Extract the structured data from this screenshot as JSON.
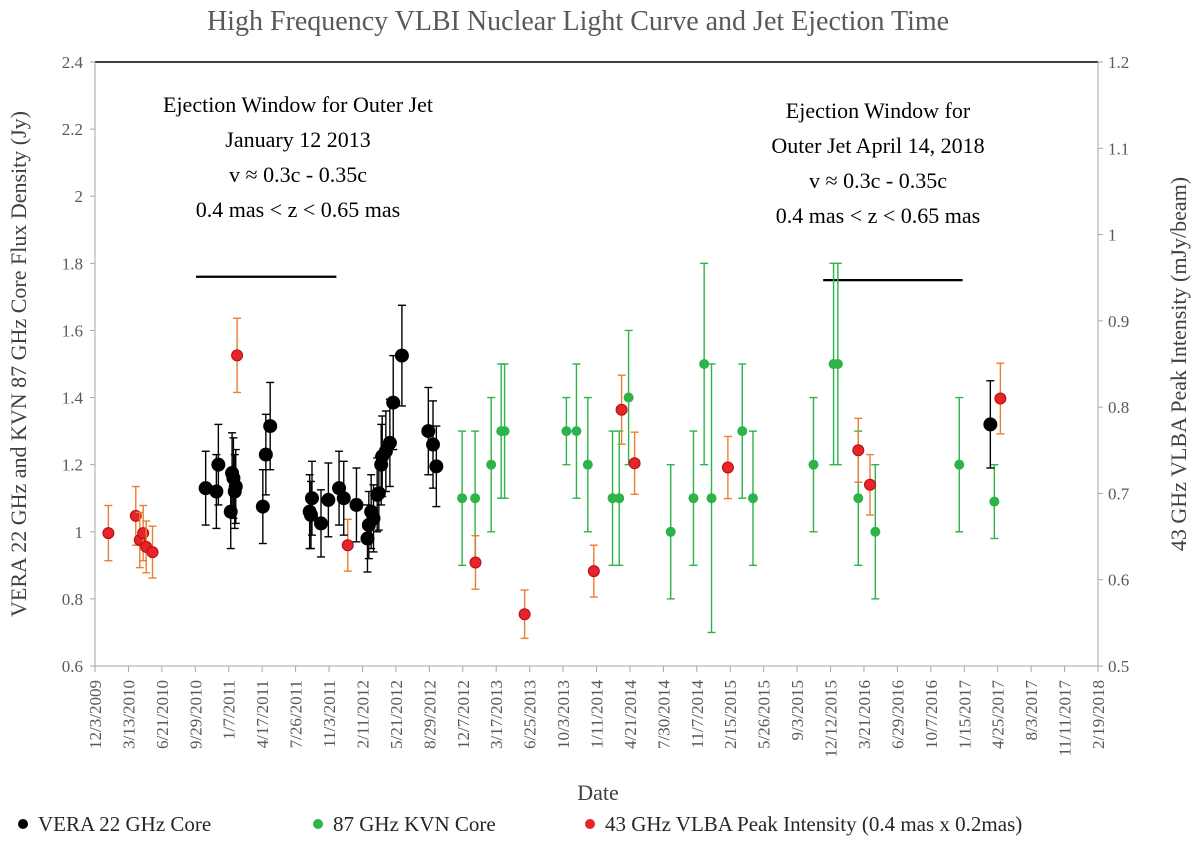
{
  "chart_data": {
    "type": "scatter",
    "title": "High Frequency VLBI Nuclear Light Curve and Jet Ejection Time",
    "xlabel": "Date",
    "ylabel_left": "VERA 22 GHz and KVN 87 GHz Core Flux Density (Jy)",
    "ylabel_right": "43 GHz VLBA Peak Intensity (mJy/beam)",
    "ylim_left": [
      0.6,
      2.4
    ],
    "ylim_right": [
      0.5,
      1.2
    ],
    "yticks_left": [
      "0.6",
      "0.8",
      "1",
      "1.2",
      "1.4",
      "1.6",
      "1.8",
      "2",
      "2.2",
      "2.4"
    ],
    "yticks_right": [
      "0.5",
      "0.6",
      "0.7",
      "0.8",
      "0.9",
      "1",
      "1.1",
      "1.2"
    ],
    "x_range_days": [
      0,
      3000
    ],
    "xticks": [
      {
        "day": 0,
        "label": "12/3/2009"
      },
      {
        "day": 100,
        "label": "3/13/2010"
      },
      {
        "day": 200,
        "label": "6/21/2010"
      },
      {
        "day": 300,
        "label": "9/29/2010"
      },
      {
        "day": 400,
        "label": "1/7/2011"
      },
      {
        "day": 500,
        "label": "4/17/2011"
      },
      {
        "day": 600,
        "label": "7/26/2011"
      },
      {
        "day": 700,
        "label": "11/3/2011"
      },
      {
        "day": 800,
        "label": "2/11/2012"
      },
      {
        "day": 900,
        "label": "5/21/2012"
      },
      {
        "day": 1000,
        "label": "8/29/2012"
      },
      {
        "day": 1100,
        "label": "12/7/2012"
      },
      {
        "day": 1200,
        "label": "3/17/2013"
      },
      {
        "day": 1300,
        "label": "6/25/2013"
      },
      {
        "day": 1400,
        "label": "10/3/2013"
      },
      {
        "day": 1500,
        "label": "1/11/2014"
      },
      {
        "day": 1600,
        "label": "4/21/2014"
      },
      {
        "day": 1700,
        "label": "7/30/2014"
      },
      {
        "day": 1800,
        "label": "11/7/2014"
      },
      {
        "day": 1900,
        "label": "2/15/2015"
      },
      {
        "day": 2000,
        "label": "5/26/2015"
      },
      {
        "day": 2100,
        "label": "9/3/2015"
      },
      {
        "day": 2200,
        "label": "12/12/2015"
      },
      {
        "day": 2300,
        "label": "3/21/2016"
      },
      {
        "day": 2400,
        "label": "6/29/2016"
      },
      {
        "day": 2500,
        "label": "10/7/2016"
      },
      {
        "day": 2600,
        "label": "1/15/2017"
      },
      {
        "day": 2700,
        "label": "4/25/2017"
      },
      {
        "day": 2800,
        "label": "8/3/2017"
      },
      {
        "day": 2900,
        "label": "11/11/2017"
      },
      {
        "day": 3000,
        "label": "2/19/2018"
      }
    ],
    "series": [
      {
        "name": "VERA 22 GHz Core",
        "color": "#000000",
        "errcolor": "#000000",
        "axis": "left",
        "points": [
          {
            "x": 331,
            "y": 1.13,
            "err": 0.11
          },
          {
            "x": 363,
            "y": 1.12,
            "err": 0.11
          },
          {
            "x": 369,
            "y": 1.2,
            "err": 0.12
          },
          {
            "x": 406,
            "y": 1.06,
            "err": 0.11
          },
          {
            "x": 410,
            "y": 1.175,
            "err": 0.12
          },
          {
            "x": 414,
            "y": 1.16,
            "err": 0.12
          },
          {
            "x": 418,
            "y": 1.12,
            "err": 0.11
          },
          {
            "x": 421,
            "y": 1.135,
            "err": 0.11
          },
          {
            "x": 502,
            "y": 1.075,
            "err": 0.11
          },
          {
            "x": 511,
            "y": 1.23,
            "err": 0.12
          },
          {
            "x": 524,
            "y": 1.315,
            "err": 0.13
          },
          {
            "x": 642,
            "y": 1.06,
            "err": 0.11
          },
          {
            "x": 646,
            "y": 1.05,
            "err": 0.1
          },
          {
            "x": 649,
            "y": 1.1,
            "err": 0.11
          },
          {
            "x": 676,
            "y": 1.025,
            "err": 0.1
          },
          {
            "x": 698,
            "y": 1.095,
            "err": 0.11
          },
          {
            "x": 730,
            "y": 1.13,
            "err": 0.11
          },
          {
            "x": 744,
            "y": 1.1,
            "err": 0.11
          },
          {
            "x": 782,
            "y": 1.08,
            "err": 0.11
          },
          {
            "x": 815,
            "y": 0.98,
            "err": 0.1
          },
          {
            "x": 819,
            "y": 1.02,
            "err": 0.1
          },
          {
            "x": 826,
            "y": 1.06,
            "err": 0.11
          },
          {
            "x": 833,
            "y": 1.04,
            "err": 0.1
          },
          {
            "x": 844,
            "y": 1.11,
            "err": 0.11
          },
          {
            "x": 849,
            "y": 1.115,
            "err": 0.11
          },
          {
            "x": 856,
            "y": 1.2,
            "err": 0.12
          },
          {
            "x": 859,
            "y": 1.225,
            "err": 0.12
          },
          {
            "x": 870,
            "y": 1.24,
            "err": 0.12
          },
          {
            "x": 882,
            "y": 1.265,
            "err": 0.13
          },
          {
            "x": 892,
            "y": 1.385,
            "err": 0.14
          },
          {
            "x": 918,
            "y": 1.525,
            "err": 0.15
          },
          {
            "x": 997,
            "y": 1.3,
            "err": 0.13
          },
          {
            "x": 1011,
            "y": 1.26,
            "err": 0.13
          },
          {
            "x": 1021,
            "y": 1.195,
            "err": 0.12
          },
          {
            "x": 2678,
            "y": 1.32,
            "err": 0.13
          }
        ]
      },
      {
        "name": "87 GHz KVN Core",
        "color": "#2db34a",
        "errcolor": "#2db34a",
        "axis": "left",
        "points": [
          {
            "x": 1098,
            "y": 1.1,
            "err": 0.2
          },
          {
            "x": 1137,
            "y": 1.1,
            "err": 0.2
          },
          {
            "x": 1185,
            "y": 1.2,
            "err": 0.2
          },
          {
            "x": 1215,
            "y": 1.3,
            "err": 0.2
          },
          {
            "x": 1225,
            "y": 1.3,
            "err": 0.2
          },
          {
            "x": 1410,
            "y": 1.3,
            "err": 0.1
          },
          {
            "x": 1440,
            "y": 1.3,
            "err": 0.2
          },
          {
            "x": 1474,
            "y": 1.2,
            "err": 0.2
          },
          {
            "x": 1548,
            "y": 1.1,
            "err": 0.2
          },
          {
            "x": 1568,
            "y": 1.1,
            "err": 0.2
          },
          {
            "x": 1596,
            "y": 1.4,
            "err": 0.2
          },
          {
            "x": 1722,
            "y": 1.0,
            "err": 0.2
          },
          {
            "x": 1790,
            "y": 1.1,
            "err": 0.2
          },
          {
            "x": 1822,
            "y": 1.5,
            "err": 0.3
          },
          {
            "x": 1844,
            "y": 1.1,
            "err": 0.4
          },
          {
            "x": 1936,
            "y": 1.3,
            "err": 0.2
          },
          {
            "x": 1968,
            "y": 1.1,
            "err": 0.2
          },
          {
            "x": 2149,
            "y": 1.2,
            "err": 0.2
          },
          {
            "x": 2209,
            "y": 1.5,
            "err": 0.3
          },
          {
            "x": 2222,
            "y": 1.5,
            "err": 0.3
          },
          {
            "x": 2283,
            "y": 1.1,
            "err": 0.2
          },
          {
            "x": 2334,
            "y": 1.0,
            "err": 0.2
          },
          {
            "x": 2585,
            "y": 1.2,
            "err": 0.2
          },
          {
            "x": 2690,
            "y": 1.09,
            "err": 0.11
          }
        ]
      },
      {
        "name": "43 GHz VLBA Peak Intensity (0.4 mas x 0.2mas)",
        "color": "#e8232a",
        "errcolor": "#ed7d31",
        "axis": "right",
        "points": [
          {
            "x": 40,
            "y": 0.654,
            "err": 0.032
          },
          {
            "x": 122,
            "y": 0.674,
            "err": 0.034
          },
          {
            "x": 134,
            "y": 0.646,
            "err": 0.032
          },
          {
            "x": 144,
            "y": 0.654,
            "err": 0.032
          },
          {
            "x": 153,
            "y": 0.638,
            "err": 0.03
          },
          {
            "x": 172,
            "y": 0.632,
            "err": 0.03
          },
          {
            "x": 425,
            "y": 0.86,
            "err": 0.043
          },
          {
            "x": 756,
            "y": 0.64,
            "err": 0.03
          },
          {
            "x": 1138,
            "y": 0.62,
            "err": 0.031
          },
          {
            "x": 1285,
            "y": 0.56,
            "err": 0.028
          },
          {
            "x": 1492,
            "y": 0.61,
            "err": 0.03
          },
          {
            "x": 1575,
            "y": 0.797,
            "err": 0.04
          },
          {
            "x": 1614,
            "y": 0.735,
            "err": 0.036
          },
          {
            "x": 1893,
            "y": 0.73,
            "err": 0.036
          },
          {
            "x": 2283,
            "y": 0.75,
            "err": 0.037
          },
          {
            "x": 2318,
            "y": 0.71,
            "err": 0.035
          },
          {
            "x": 2708,
            "y": 0.81,
            "err": 0.041
          }
        ]
      }
    ],
    "annotations": [
      {
        "lines": [
          "Ejection Window for Outer Jet",
          "January 12 2013",
          "v ≈ 0.3c - 0.35c",
          "0.4 mas < z < 0.65 mas"
        ],
        "window_days": [
          302,
          722
        ],
        "window_y": 1.76
      },
      {
        "lines": [
          "Ejection Window for",
          "Outer Jet April 14, 2018",
          "v ≈ 0.3c - 0.35c",
          "0.4 mas < z < 0.65 mas"
        ],
        "window_days": [
          2178,
          2595
        ],
        "window_y": 1.75
      }
    ],
    "legend": {
      "position": "bottom",
      "entries": [
        "VERA 22 GHz Core",
        "87 GHz KVN Core",
        "43 GHz VLBA Peak Intensity (0.4 mas x 0.2mas)"
      ]
    }
  }
}
